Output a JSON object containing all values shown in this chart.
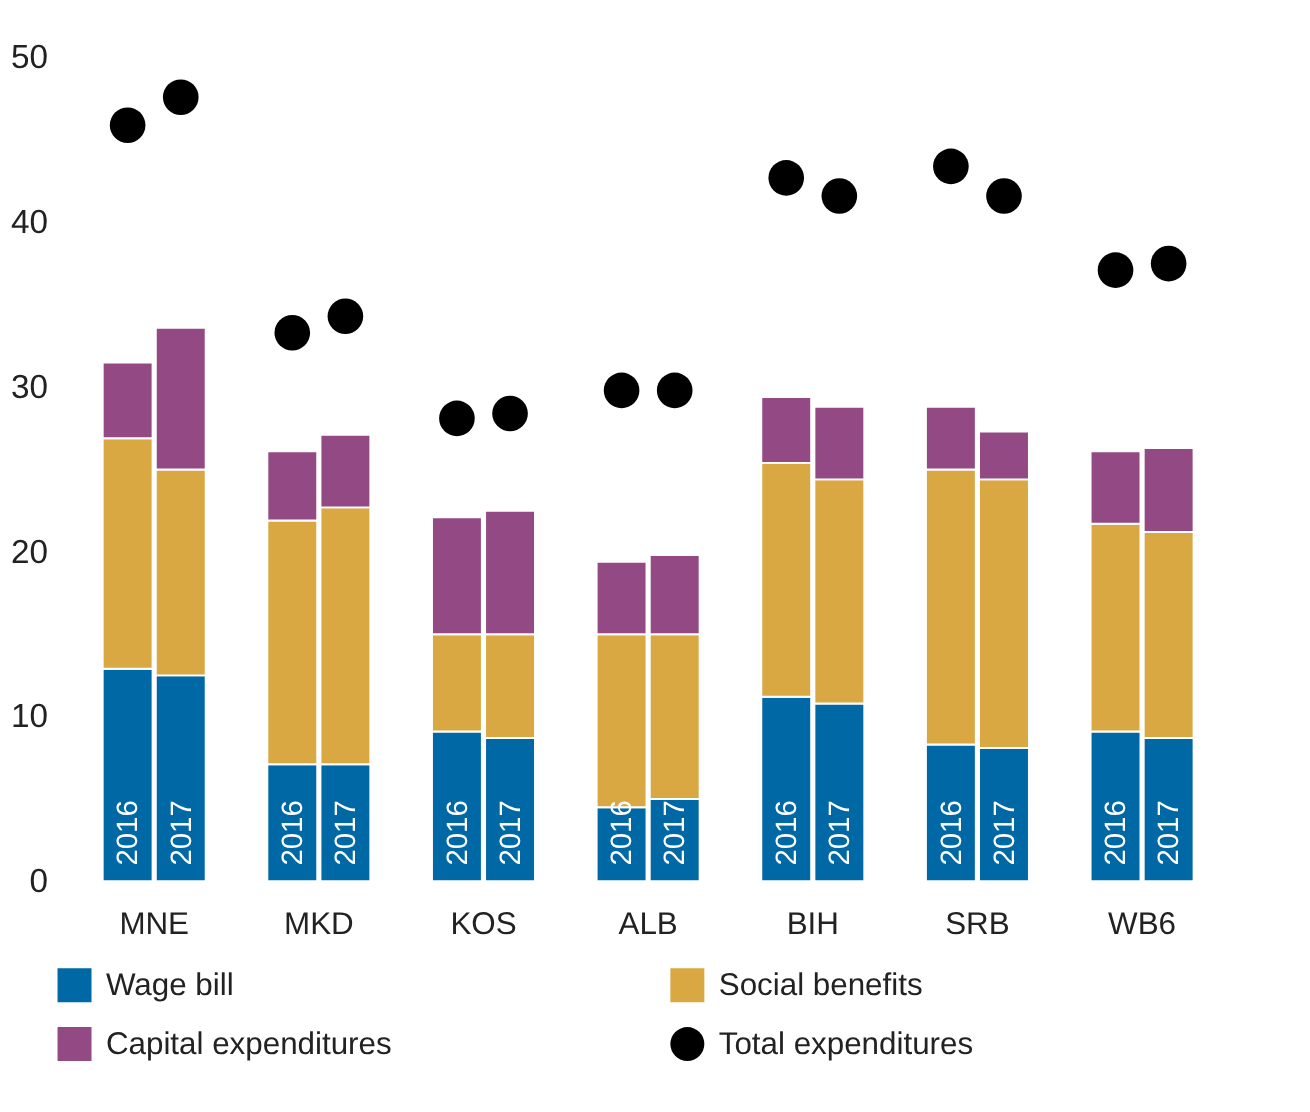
{
  "chart_data": {
    "type": "bar",
    "stacked": true,
    "categories": [
      "2016",
      "2017",
      "2016",
      "2017",
      "2016",
      "2017",
      "2016",
      "2017",
      "2016",
      "2017",
      "2016",
      "2017",
      "2016",
      "2017"
    ],
    "series": [
      {
        "name": "Wage bill",
        "color": "#0068a5",
        "values": [
          12.9,
          12.5,
          7.1,
          7.1,
          9.1,
          8.7,
          4.5,
          5.0,
          11.2,
          10.8,
          8.3,
          8.1,
          9.1,
          8.7
        ]
      },
      {
        "name": "Social benefits",
        "color": "#d9a843",
        "values": [
          14.0,
          12.5,
          14.8,
          15.6,
          5.9,
          6.3,
          10.5,
          10.0,
          14.2,
          13.6,
          16.7,
          16.3,
          12.6,
          12.5
        ]
      },
      {
        "name": "Capital expenditures",
        "color": "#934a84",
        "values": [
          4.6,
          8.6,
          4.2,
          4.4,
          7.1,
          7.5,
          4.4,
          4.8,
          4.0,
          4.4,
          3.8,
          2.9,
          4.4,
          5.1
        ]
      },
      {
        "name": "Total expenditures",
        "type": "scatter",
        "color": "#000000",
        "marker": "circle",
        "values": [
          45.9,
          47.6,
          33.3,
          34.3,
          28.1,
          28.4,
          29.8,
          29.8,
          42.7,
          41.6,
          43.4,
          41.6,
          37.1,
          37.5
        ]
      }
    ],
    "annotations": [
      "MNE",
      "MKD",
      "KOS",
      "ALB",
      "BIH",
      "SRB",
      "WB6"
    ],
    "ylim": [
      0,
      50
    ],
    "yticks": [
      0,
      10,
      20,
      30,
      40,
      50
    ],
    "grid": false,
    "legend": "bottom"
  }
}
